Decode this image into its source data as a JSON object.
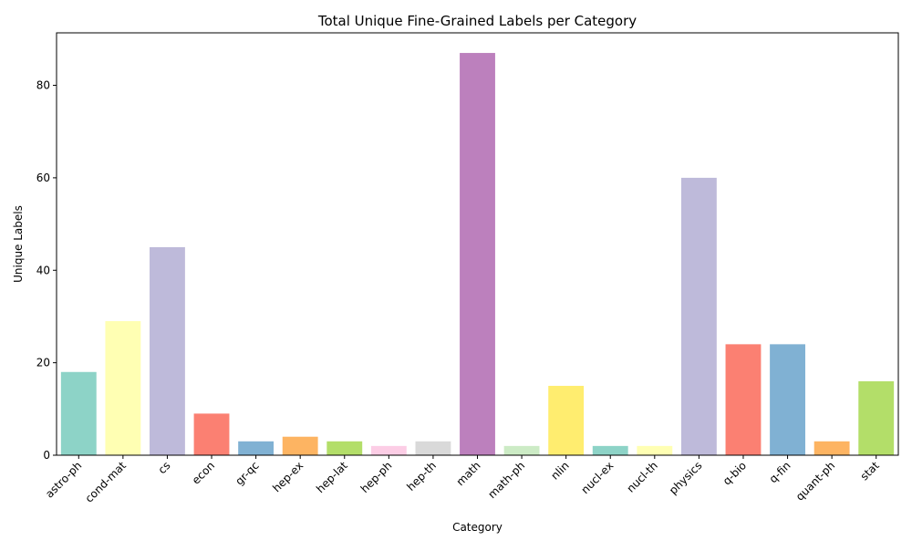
{
  "chart_data": {
    "type": "bar",
    "title": "Total Unique Fine-Grained Labels per Category",
    "xlabel": "Category",
    "ylabel": "Unique Labels",
    "ylim": [
      0,
      91.35
    ],
    "yticks": [
      0,
      20,
      40,
      60,
      80
    ],
    "categories": [
      "astro-ph",
      "cond-mat",
      "cs",
      "econ",
      "gr-qc",
      "hep-ex",
      "hep-lat",
      "hep-ph",
      "hep-th",
      "math",
      "math-ph",
      "nlin",
      "nucl-ex",
      "nucl-th",
      "physics",
      "q-bio",
      "q-fin",
      "quant-ph",
      "stat"
    ],
    "values": [
      18,
      29,
      45,
      9,
      3,
      4,
      3,
      2,
      3,
      87,
      2,
      15,
      2,
      2,
      60,
      24,
      24,
      3,
      16
    ],
    "colors": [
      "#8dd3c7",
      "#ffffb3",
      "#bebada",
      "#fb8072",
      "#80b1d3",
      "#fdb462",
      "#b3de69",
      "#fccde5",
      "#d9d9d9",
      "#bc80bd",
      "#ccebc5",
      "#ffed6f",
      "#8dd3c7",
      "#ffffb3",
      "#bebada",
      "#fb8072",
      "#80b1d3",
      "#fdb462",
      "#b3de69"
    ],
    "grid": false,
    "legend": "none"
  }
}
